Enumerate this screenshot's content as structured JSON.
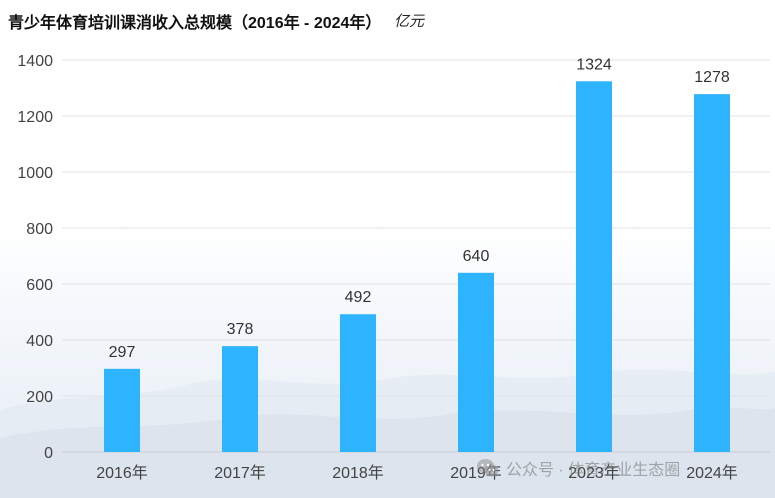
{
  "title": "青少年体育培训课消收入总规模（2016年 - 2024年）",
  "unit": "亿元",
  "watermark": {
    "icon": "wechat-icon",
    "text": "公众号 · 体育产业生态圈"
  },
  "colors": {
    "bar": "#2eb3ff",
    "grid": "#dfe3e8",
    "axis_text": "#444444",
    "label_text": "#333333"
  },
  "chart_data": {
    "type": "bar",
    "title": "青少年体育培训课消收入总规模（2016年 - 2024年）",
    "ylabel": "亿元",
    "xlabel": "",
    "categories": [
      "2016年",
      "2017年",
      "2018年",
      "2019年",
      "2023年",
      "2024年"
    ],
    "values": [
      297,
      378,
      492,
      640,
      1324,
      1278
    ],
    "ylim": [
      0,
      1400
    ],
    "yticks": [
      0,
      200,
      400,
      600,
      800,
      1000,
      1200,
      1400
    ],
    "grid": true,
    "legend": "none",
    "data_labels": true
  }
}
